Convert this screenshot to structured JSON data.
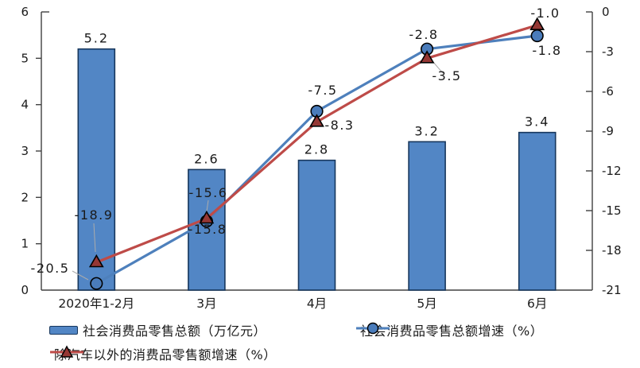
{
  "chart_data": {
    "type": "bar+line",
    "title": "",
    "categories": [
      "2020年1-2月",
      "3月",
      "4月",
      "5月",
      "6月"
    ],
    "series": [
      {
        "name": "社会消费品零售总额（万亿元）",
        "type": "bar",
        "axis": "left",
        "marker": "none",
        "values": [
          5.2,
          2.6,
          2.8,
          3.2,
          3.4
        ]
      },
      {
        "name": "社会消费品零售总额增速（%）",
        "type": "line",
        "axis": "right",
        "marker": "circle",
        "values": [
          -20.5,
          -15.8,
          -7.5,
          -2.8,
          -1.8
        ]
      },
      {
        "name": "除汽车以外的消费品零售额增速（%）",
        "type": "line",
        "axis": "right",
        "marker": "triangle",
        "values": [
          -18.9,
          -15.6,
          -8.3,
          -3.5,
          -1.0
        ]
      }
    ],
    "left_axis": {
      "min": 0,
      "max": 6,
      "ticks": [
        0,
        1,
        2,
        3,
        4,
        5,
        6
      ]
    },
    "right_axis": {
      "min": -21,
      "max": 0,
      "ticks": [
        0,
        -3,
        -6,
        -9,
        -12,
        -15,
        -18,
        -21
      ]
    },
    "grid": false,
    "legend_position": "bottom",
    "data_labels": true
  },
  "legend": {
    "items": [
      {
        "label": "社会消费品零售总额（万亿元）",
        "swatch": "bar-blue"
      },
      {
        "label": "社会消费品零售总额增速（%）",
        "swatch": "line-circle-blue"
      },
      {
        "label": "除汽车以外的消费品零售额增速（%）",
        "swatch": "line-triangle-red"
      }
    ]
  },
  "colors": {
    "bar_fill": "#5286C5",
    "bar_border": "#17375D",
    "line_blue": "#4E80BC",
    "line_red": "#BE4B48",
    "marker_circle_fill": "#4A7CBB",
    "marker_triangle_fill": "#953734",
    "marker_stroke": "#000000",
    "axis": "#404040",
    "text": "#1a1a1a",
    "leader": "#ABABAB"
  }
}
